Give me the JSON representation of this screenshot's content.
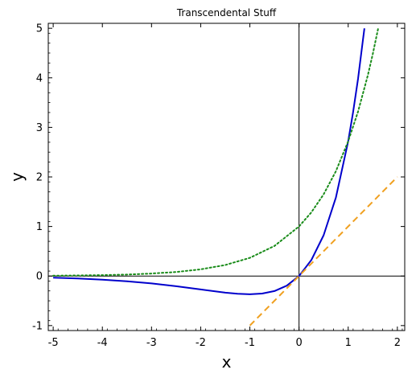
{
  "chart_data": {
    "type": "line",
    "title": "Transcendental Stuff",
    "xlabel": "x",
    "ylabel": "y",
    "xlim": [
      -5.1,
      2.15
    ],
    "ylim": [
      -1.1,
      5.1
    ],
    "x_ticks": [
      -5,
      -4,
      -3,
      -2,
      -1,
      0,
      1,
      2
    ],
    "y_ticks": [
      -1,
      0,
      1,
      2,
      3,
      4,
      5
    ],
    "grid": false,
    "axis_lines_at_origin": true,
    "series": [
      {
        "color": "#0000cc",
        "style": "solid",
        "x": [
          -5,
          -4.5,
          -4,
          -3.5,
          -3,
          -2.5,
          -2,
          -1.5,
          -1.25,
          -1,
          -0.75,
          -0.5,
          -0.25,
          0,
          0.25,
          0.5,
          0.75,
          1,
          1.1,
          1.2,
          1.3,
          1.33
        ],
        "y": [
          -0.034,
          -0.05,
          -0.073,
          -0.106,
          -0.149,
          -0.205,
          -0.271,
          -0.335,
          -0.358,
          -0.368,
          -0.354,
          -0.303,
          -0.195,
          0,
          0.321,
          0.824,
          1.588,
          2.718,
          3.305,
          3.984,
          4.77,
          5.0
        ]
      },
      {
        "color": "#1a8c1a",
        "style": "dotted",
        "x": [
          -5,
          -4.5,
          -4,
          -3.5,
          -3,
          -2.5,
          -2,
          -1.5,
          -1,
          -0.5,
          0,
          0.25,
          0.5,
          0.75,
          1,
          1.2,
          1.4,
          1.5,
          1.61
        ],
        "y": [
          0.007,
          0.011,
          0.018,
          0.03,
          0.05,
          0.082,
          0.135,
          0.223,
          0.368,
          0.607,
          1.0,
          1.284,
          1.649,
          2.117,
          2.718,
          3.32,
          4.055,
          4.482,
          5.0
        ]
      },
      {
        "color": "#f0a020",
        "style": "dashed",
        "x": [
          -1,
          2
        ],
        "y": [
          -1,
          2
        ]
      }
    ]
  }
}
